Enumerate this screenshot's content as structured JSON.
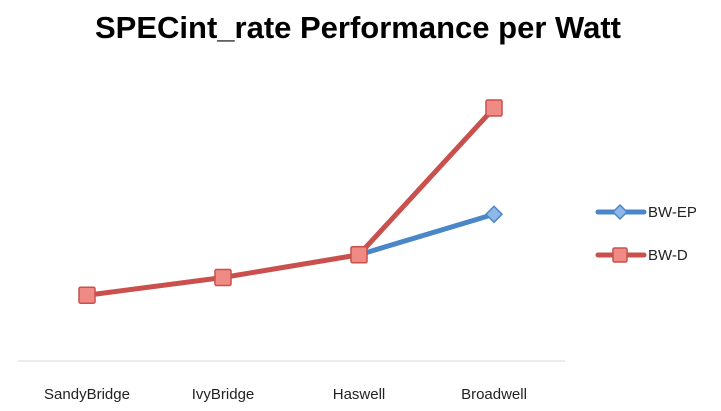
{
  "chart_data": {
    "type": "line",
    "title": "SPECint_rate Performance per Watt",
    "xlabel": "",
    "ylabel": "",
    "categories": [
      "SandyBridge",
      "IvyBridge",
      "Haswell",
      "Broadwell"
    ],
    "ylim": [
      0,
      100
    ],
    "grid": false,
    "legend_position": "right",
    "series": [
      {
        "name": "BW-EP",
        "color": "#4a86c8",
        "marker": "diamond",
        "values": [
          null,
          null,
          42,
          58
        ]
      },
      {
        "name": "BW-D",
        "color": "#c9504c",
        "marker_fill": "#f08a84",
        "marker": "square",
        "values": [
          26,
          33,
          42,
          100
        ]
      }
    ]
  }
}
